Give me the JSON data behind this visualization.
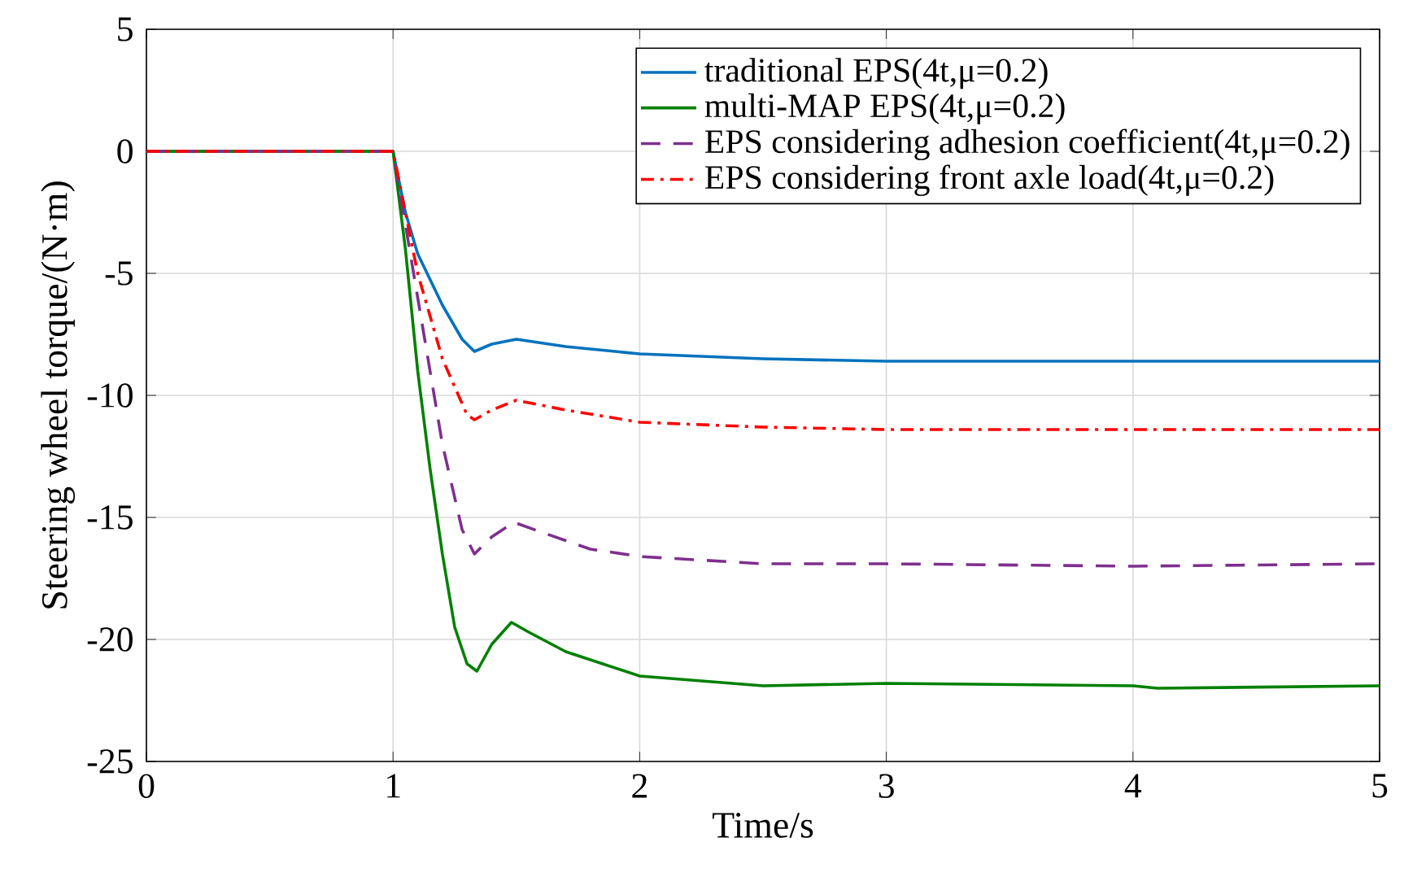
{
  "chart_data": {
    "type": "line",
    "xlabel": "Time/s",
    "ylabel": "Steering wheel torque/(N·m)",
    "xlim": [
      0,
      5
    ],
    "ylim": [
      -25,
      5
    ],
    "xticks": [
      0,
      1,
      2,
      3,
      4,
      5
    ],
    "yticks": [
      -25,
      -20,
      -15,
      -10,
      -5,
      0,
      5
    ],
    "grid": true,
    "legend": "top right",
    "series": [
      {
        "name": "traditional EPS(4t,μ=0.2)",
        "color": "#0072bd",
        "line_style": "solid",
        "x": [
          0,
          1.0,
          1.05,
          1.1,
          1.2,
          1.28,
          1.33,
          1.4,
          1.5,
          1.7,
          2.0,
          2.5,
          3.0,
          4.0,
          5.0
        ],
        "values": [
          0,
          0,
          -2.5,
          -4.2,
          -6.3,
          -7.7,
          -8.2,
          -7.9,
          -7.7,
          -8.0,
          -8.3,
          -8.5,
          -8.6,
          -8.6,
          -8.6
        ]
      },
      {
        "name": "multi-MAP EPS(4t,μ=0.2)",
        "color": "#008000",
        "line_style": "solid",
        "x": [
          0,
          1.0,
          1.05,
          1.1,
          1.15,
          1.2,
          1.25,
          1.3,
          1.34,
          1.4,
          1.48,
          1.55,
          1.7,
          2.0,
          2.5,
          3.0,
          4.0,
          4.1,
          5.0
        ],
        "values": [
          0,
          0,
          -4,
          -9,
          -13,
          -16.5,
          -19.5,
          -21,
          -21.3,
          -20.2,
          -19.3,
          -19.7,
          -20.5,
          -21.5,
          -21.9,
          -21.8,
          -21.9,
          -22.0,
          -21.9
        ]
      },
      {
        "name": "EPS considering adhesion coefficient(4t,μ=0.2)",
        "color": "#7e2f8e",
        "line_style": "dashed",
        "x": [
          0,
          1.0,
          1.05,
          1.1,
          1.2,
          1.28,
          1.33,
          1.4,
          1.49,
          1.6,
          1.8,
          2.0,
          2.5,
          3.0,
          4.0,
          5.0
        ],
        "values": [
          0,
          0,
          -3,
          -6,
          -12,
          -15.5,
          -16.5,
          -15.8,
          -15.2,
          -15.6,
          -16.3,
          -16.6,
          -16.9,
          -16.9,
          -17.0,
          -16.9
        ]
      },
      {
        "name": "EPS considering front axle load(4t,μ=0.2)",
        "color": "#ff0000",
        "line_style": "dashdot",
        "x": [
          0,
          1.0,
          1.05,
          1.1,
          1.2,
          1.3,
          1.33,
          1.4,
          1.5,
          1.7,
          2.0,
          2.5,
          3.0,
          4.0,
          5.0
        ],
        "values": [
          0,
          0,
          -2.5,
          -5,
          -8.5,
          -10.8,
          -11.0,
          -10.6,
          -10.2,
          -10.6,
          -11.1,
          -11.3,
          -11.4,
          -11.4,
          -11.4
        ]
      }
    ]
  }
}
